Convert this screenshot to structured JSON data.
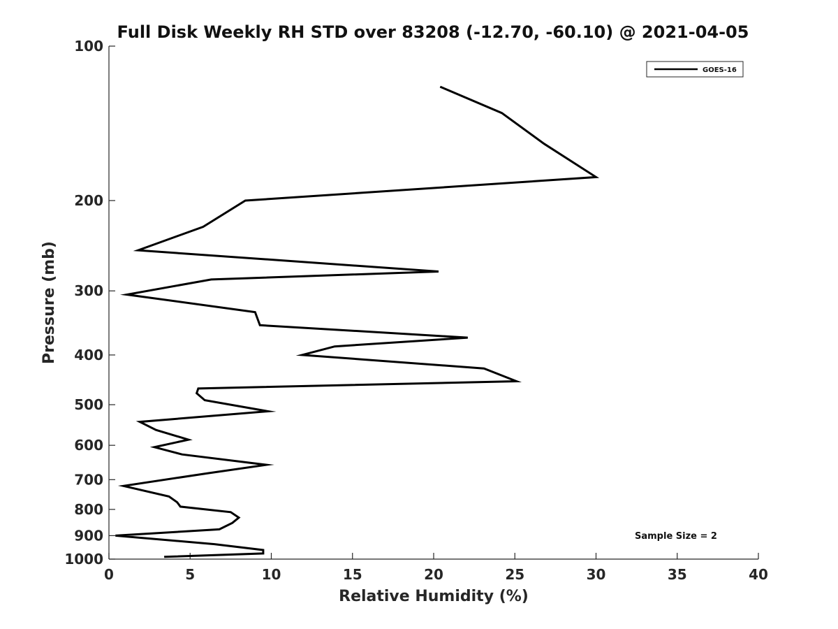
{
  "chart_data": {
    "type": "line",
    "title": "Full Disk Weekly RH STD over 83208 (-12.70, -60.10) @ 2021-04-05",
    "xlabel": "Relative Humidity (%)",
    "ylabel": "Pressure (mb)",
    "xlim": [
      0,
      40
    ],
    "ylim": [
      100,
      1000
    ],
    "y_scale": "log",
    "y_inverted": true,
    "x_ticks": [
      "0",
      "5",
      "10",
      "15",
      "20",
      "25",
      "30",
      "35",
      "40"
    ],
    "y_ticks": [
      "100",
      "200",
      "300",
      "400",
      "500",
      "600",
      "700",
      "800",
      "900",
      "1000"
    ],
    "legend_position": "top-right",
    "annotation": "Sample Size = 2",
    "colors": {
      "line": "#000000",
      "axis": "#262626"
    },
    "series": [
      {
        "name": "GOES-16",
        "x": [
          20.4,
          24.2,
          26.8,
          30.0,
          8.4,
          5.8,
          1.8,
          20.3,
          6.3,
          1.1,
          9.0,
          9.3,
          22.1,
          13.9,
          11.9,
          23.1,
          25.1,
          5.5,
          5.4,
          5.9,
          9.8,
          1.9,
          2.9,
          4.9,
          2.8,
          4.5,
          9.7,
          6.1,
          0.9,
          3.7,
          4.2,
          4.4,
          7.5,
          8.0,
          7.6,
          6.8,
          0.4,
          6.5,
          9.5,
          9.5,
          3.4
        ],
        "y": [
          120,
          135,
          155,
          180,
          200,
          225,
          250,
          275,
          285,
          305,
          330,
          350,
          370,
          385,
          400,
          425,
          450,
          465,
          475,
          490,
          515,
          540,
          560,
          585,
          605,
          625,
          655,
          680,
          720,
          755,
          775,
          790,
          810,
          830,
          850,
          875,
          900,
          935,
          960,
          975,
          990
        ]
      }
    ]
  }
}
